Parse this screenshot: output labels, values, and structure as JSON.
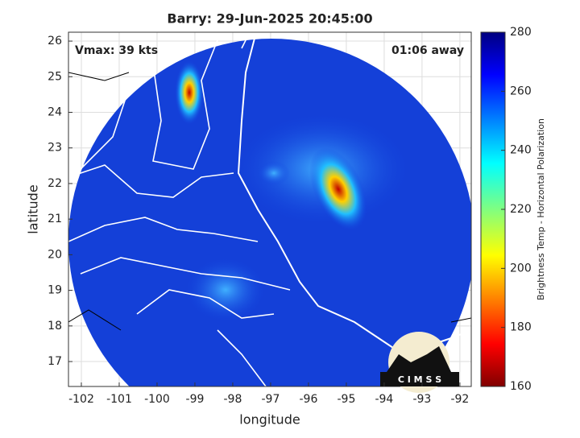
{
  "chart_data": {
    "type": "map",
    "title": "Barry: 29-Jun-2025 20:45:00",
    "annotations": [
      "Vmax: 39 kts",
      "01:06 away"
    ],
    "xlabel": "longitude",
    "ylabel": "latitude",
    "xlim": [
      -102.34,
      -91.7
    ],
    "ylim": [
      16.3,
      26.25
    ],
    "xticks": [
      -102,
      -101,
      -100,
      -99,
      -98,
      -97,
      -96,
      -95,
      -94,
      -93,
      -92
    ],
    "yticks": [
      17,
      18,
      19,
      20,
      21,
      22,
      23,
      24,
      25,
      26
    ],
    "grid": true,
    "colorbar": {
      "label": "Brightness Temp - Horizontal Polarization",
      "lim": [
        160,
        280
      ],
      "ticks": [
        160,
        180,
        200,
        220,
        240,
        260,
        280
      ]
    },
    "logo": "C I M S S"
  }
}
